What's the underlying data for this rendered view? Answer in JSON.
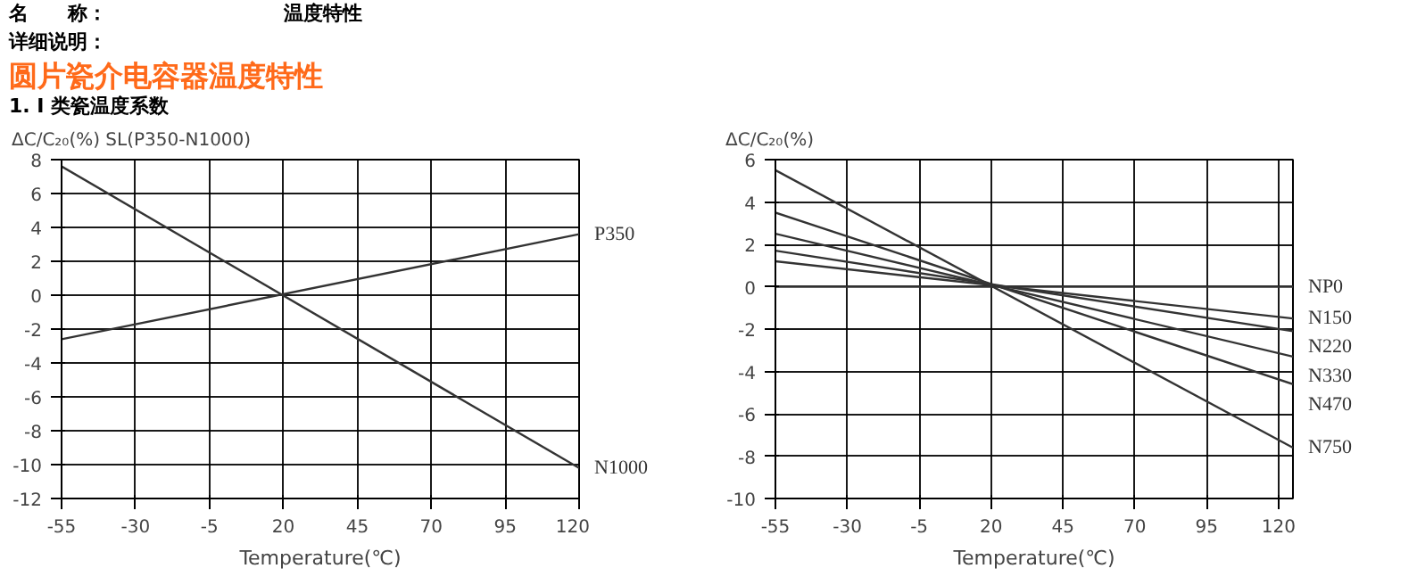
{
  "chart_data": [
    {
      "type": "line",
      "title": "圆片瓷介电容器温度特性",
      "subtitle": "1. I 类瓷温度系数",
      "annotations": [
        "名　　称：　　　　　　　　　温度特性",
        "详细说明："
      ],
      "ylabel": "ΔC/C₂₀(%) SL(P350-N1000)",
      "xlabel": "Temperature(℃)",
      "x": [
        -55,
        120
      ],
      "series": [
        {
          "name": "P350",
          "color": "#333333",
          "values": [
            -2.6,
            3.6
          ]
        },
        {
          "name": "N1000",
          "color": "#333333",
          "values": [
            7.6,
            -10.2
          ]
        }
      ],
      "xlim": [
        -55,
        120
      ],
      "xticks": [
        -55,
        -30,
        -5,
        20,
        45,
        70,
        95,
        120
      ],
      "ylim": [
        -12,
        8
      ],
      "yticks": [
        -12,
        -10,
        -8,
        -6,
        -4,
        -2,
        0,
        2,
        4,
        6,
        8
      ],
      "grid": true,
      "legend": false,
      "marker": "none",
      "line_style": "solid"
    },
    {
      "type": "line",
      "ylabel": "ΔC/C₂₀(%)",
      "xlabel": "Temperature(℃)",
      "x": [
        -55,
        125
      ],
      "series": [
        {
          "name": "NP0",
          "color": "#333333",
          "values": [
            0,
            0
          ]
        },
        {
          "name": "N150",
          "color": "#333333",
          "values": [
            1.2,
            -1.5
          ]
        },
        {
          "name": "N220",
          "color": "#333333",
          "values": [
            1.7,
            -2.1
          ]
        },
        {
          "name": "N330",
          "color": "#333333",
          "values": [
            2.5,
            -3.3
          ]
        },
        {
          "name": "N470",
          "color": "#333333",
          "values": [
            3.5,
            -4.6
          ]
        },
        {
          "name": "N750",
          "color": "#333333",
          "values": [
            5.5,
            -7.6
          ]
        }
      ],
      "xlim": [
        -55,
        125
      ],
      "xticks": [
        -55,
        -30,
        -5,
        20,
        45,
        70,
        95,
        120
      ],
      "ylim": [
        -10,
        6
      ],
      "yticks": [
        -10,
        -8,
        -6,
        -4,
        -2,
        0,
        2,
        4,
        6
      ],
      "grid": true,
      "legend": false,
      "marker": "none",
      "line_style": "solid"
    }
  ]
}
